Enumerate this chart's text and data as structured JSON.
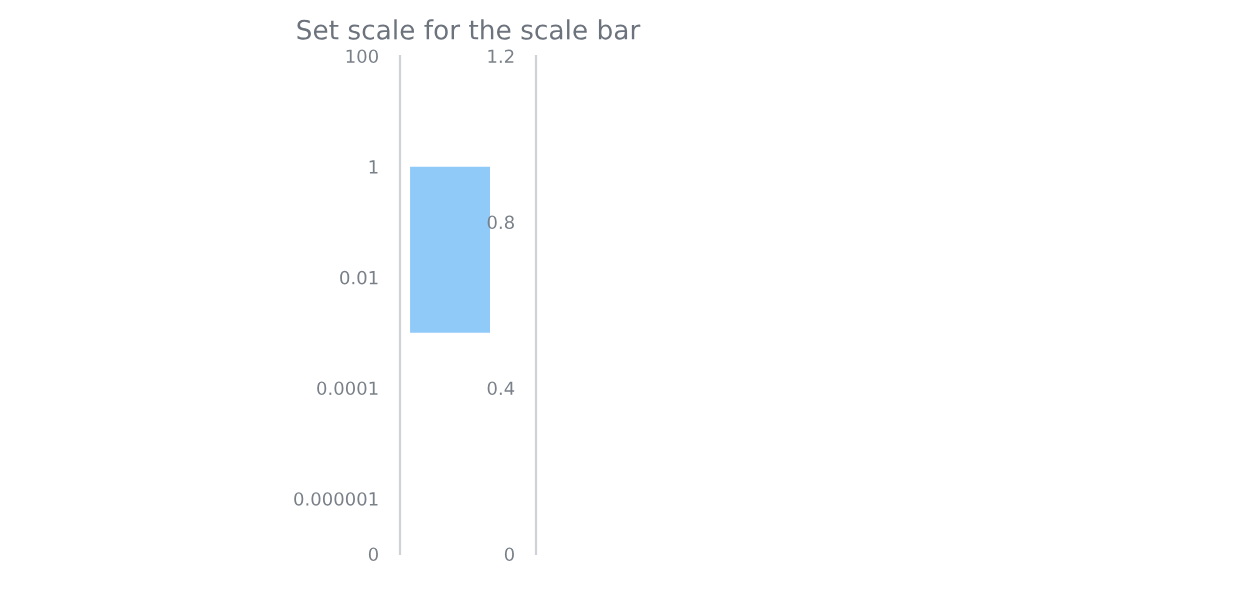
{
  "chart_data": {
    "type": "bar",
    "title": "Set scale for the scale bar",
    "categories": [
      null
    ],
    "series": [
      {
        "color": "#90caf9",
        "values": [
          0.999
        ],
        "base": [
          0.001
        ]
      }
    ],
    "log": "y",
    "ylim": [
      1e-07,
      100
    ],
    "yticks": [
      {
        "value": 1e-07,
        "label": "0"
      },
      {
        "value": 1e-06,
        "label": "0.000001"
      },
      {
        "value": 0.0001,
        "label": "0.0001"
      },
      {
        "value": 0.01,
        "label": "0.01"
      },
      1,
      100
    ],
    "y2lim": [
      0,
      1.2
    ],
    "y2ticks": [
      0,
      0.4,
      0.8,
      1.2
    ],
    "grid": false,
    "legend": false
  }
}
